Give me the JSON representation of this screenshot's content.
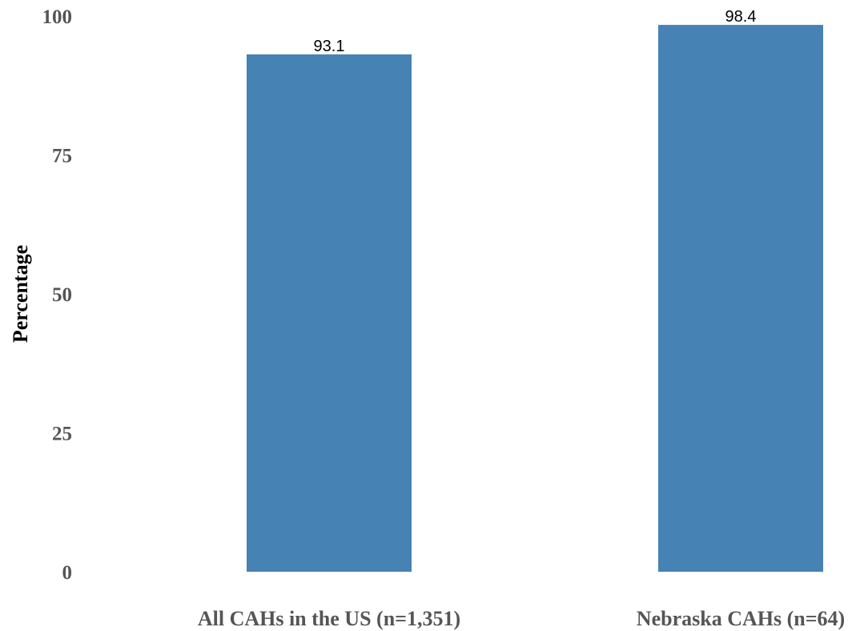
{
  "chart_data": {
    "type": "bar",
    "categories": [
      "All CAHs in the US (n=1,351)",
      "Nebraska CAHs (n=64)"
    ],
    "values": [
      93.1,
      98.4
    ],
    "data_labels": [
      "93.1",
      "98.4"
    ],
    "title": "",
    "xlabel": "",
    "ylabel": "Percentage",
    "ylim": [
      0,
      100
    ],
    "yticks": [
      0,
      25,
      50,
      75,
      100
    ],
    "ytick_labels": [
      "0",
      "25",
      "50",
      "75",
      "100"
    ],
    "grid": false,
    "legend": "none",
    "bar_color": "#4682b4"
  }
}
